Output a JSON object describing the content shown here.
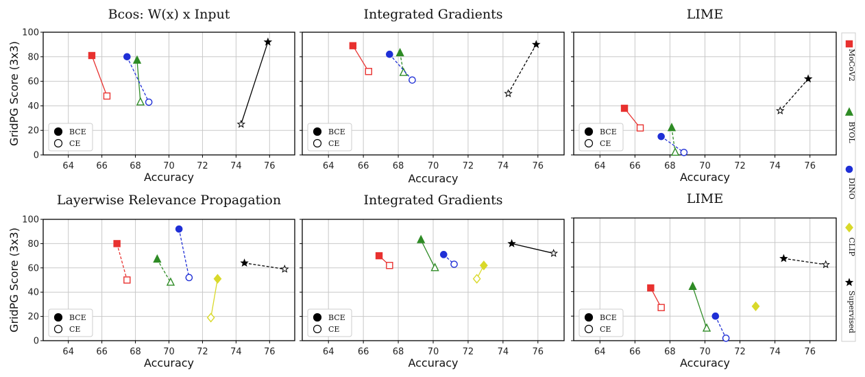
{
  "figure": {
    "ylabel": "GridPG Score (3x3)",
    "xlabel": "Accuracy",
    "legend_markers": [
      "BCE",
      "CE"
    ],
    "method_legend": [
      {
        "name": "MoCoV2",
        "color": "#e8312f",
        "marker": "square"
      },
      {
        "name": "BYOL",
        "color": "#2e8b25",
        "marker": "triangle"
      },
      {
        "name": "DINO",
        "color": "#1f2fd6",
        "marker": "circle"
      },
      {
        "name": "CLIP",
        "color": "#d9d92a",
        "marker": "diamond"
      },
      {
        "name": "Supervised",
        "color": "#000000",
        "marker": "star"
      }
    ]
  },
  "chart_data": [
    {
      "type": "scatter",
      "title": "Bcos: W(x) x Input",
      "xlabel": "Accuracy",
      "ylabel": "GridPG Score (3x3)",
      "xlim": [
        62.5,
        77.5
      ],
      "ylim": [
        0,
        100
      ],
      "xticks": [
        64,
        66,
        68,
        70,
        72,
        74,
        76
      ],
      "yticks": [
        0,
        20,
        40,
        60,
        80,
        100
      ],
      "legend": {
        "labels": [
          "BCE",
          "CE"
        ],
        "position": "lower-left"
      },
      "series": [
        {
          "name": "MoCoV2",
          "bce": [
            65.4,
            81
          ],
          "ce": [
            66.3,
            48
          ],
          "dash": false
        },
        {
          "name": "BYOL",
          "bce": [
            68.1,
            77
          ],
          "ce": [
            68.3,
            43
          ],
          "dash": false
        },
        {
          "name": "DINO",
          "bce": [
            67.5,
            80
          ],
          "ce": [
            68.8,
            43
          ],
          "dash": true
        },
        {
          "name": "Supervised",
          "bce": [
            75.9,
            92
          ],
          "ce": [
            74.3,
            25
          ],
          "dash": false
        }
      ]
    },
    {
      "type": "scatter",
      "title": "Integrated Gradients",
      "xlabel": "Accuracy",
      "ylabel": "",
      "xlim": [
        62.5,
        77.5
      ],
      "ylim": [
        0,
        100
      ],
      "xticks": [
        64,
        66,
        68,
        70,
        72,
        74,
        76
      ],
      "yticks": [
        0,
        20,
        40,
        60,
        80,
        100
      ],
      "legend": {
        "labels": [
          "BCE",
          "CE"
        ],
        "position": "lower-left"
      },
      "series": [
        {
          "name": "MoCoV2",
          "bce": [
            65.4,
            89
          ],
          "ce": [
            66.3,
            68
          ],
          "dash": false
        },
        {
          "name": "BYOL",
          "bce": [
            68.1,
            83
          ],
          "ce": [
            68.3,
            67
          ],
          "dash": true
        },
        {
          "name": "DINO",
          "bce": [
            67.5,
            82
          ],
          "ce": [
            68.8,
            61
          ],
          "dash": true
        },
        {
          "name": "Supervised",
          "bce": [
            75.9,
            90
          ],
          "ce": [
            74.3,
            50
          ],
          "dash": true
        }
      ]
    },
    {
      "type": "scatter",
      "title": "LIME",
      "xlabel": "Accuracy",
      "ylabel": "",
      "xlim": [
        62.5,
        77.5
      ],
      "ylim": [
        0,
        100
      ],
      "xticks": [
        64,
        66,
        68,
        70,
        72,
        74,
        76
      ],
      "yticks": [
        0,
        20,
        40,
        60,
        80,
        100
      ],
      "legend": {
        "labels": [
          "BCE",
          "CE"
        ],
        "position": "lower-left"
      },
      "series": [
        {
          "name": "MoCoV2",
          "bce": [
            65.4,
            38
          ],
          "ce": [
            66.3,
            22
          ],
          "dash": false
        },
        {
          "name": "BYOL",
          "bce": [
            68.1,
            22
          ],
          "ce": [
            68.3,
            2
          ],
          "dash": true
        },
        {
          "name": "DINO",
          "bce": [
            67.5,
            15
          ],
          "ce": [
            68.8,
            2
          ],
          "dash": true
        },
        {
          "name": "Supervised",
          "bce": [
            75.9,
            62
          ],
          "ce": [
            74.3,
            36
          ],
          "dash": true
        }
      ]
    },
    {
      "type": "scatter",
      "title": "Layerwise Relevance Propagation",
      "xlabel": "Accuracy",
      "ylabel": "GridPG Score (3x3)",
      "xlim": [
        62.5,
        77.5
      ],
      "ylim": [
        0,
        100
      ],
      "xticks": [
        64,
        66,
        68,
        70,
        72,
        74,
        76
      ],
      "yticks": [
        0,
        20,
        40,
        60,
        80,
        100
      ],
      "legend": {
        "labels": [
          "BCE",
          "CE"
        ],
        "position": "lower-left"
      },
      "series": [
        {
          "name": "MoCoV2",
          "bce": [
            66.9,
            80
          ],
          "ce": [
            67.5,
            50
          ],
          "dash": true
        },
        {
          "name": "BYOL",
          "bce": [
            69.3,
            67
          ],
          "ce": [
            70.1,
            48
          ],
          "dash": true
        },
        {
          "name": "DINO",
          "bce": [
            70.6,
            92
          ],
          "ce": [
            71.2,
            52
          ],
          "dash": true
        },
        {
          "name": "CLIP",
          "bce": [
            72.9,
            51
          ],
          "ce": [
            72.5,
            19
          ],
          "dash": false
        },
        {
          "name": "Supervised",
          "bce": [
            74.5,
            64
          ],
          "ce": [
            76.9,
            59
          ],
          "dash": true
        }
      ]
    },
    {
      "type": "scatter",
      "title": "Integrated Gradients",
      "xlabel": "Accuracy",
      "ylabel": "",
      "xlim": [
        62.5,
        77.5
      ],
      "ylim": [
        0,
        100
      ],
      "xticks": [
        64,
        66,
        68,
        70,
        72,
        74,
        76
      ],
      "yticks": [
        0,
        20,
        40,
        60,
        80,
        100
      ],
      "legend": {
        "labels": [
          "BCE",
          "CE"
        ],
        "position": "lower-left"
      },
      "series": [
        {
          "name": "MoCoV2",
          "bce": [
            66.9,
            70
          ],
          "ce": [
            67.5,
            62
          ],
          "dash": false
        },
        {
          "name": "BYOL",
          "bce": [
            69.3,
            83
          ],
          "ce": [
            70.1,
            60
          ],
          "dash": false
        },
        {
          "name": "DINO",
          "bce": [
            70.6,
            71
          ],
          "ce": [
            71.2,
            63
          ],
          "dash": true
        },
        {
          "name": "CLIP",
          "bce": [
            72.9,
            62
          ],
          "ce": [
            72.5,
            51
          ],
          "dash": false
        },
        {
          "name": "Supervised",
          "bce": [
            74.5,
            80
          ],
          "ce": [
            76.9,
            72
          ],
          "dash": false
        }
      ]
    },
    {
      "type": "scatter",
      "title": "LIME",
      "xlabel": "Accuracy",
      "ylabel": "",
      "xlim": [
        62.5,
        77.5
      ],
      "ylim": [
        0,
        100
      ],
      "xticks": [
        64,
        66,
        68,
        70,
        72,
        74,
        76
      ],
      "yticks": [
        0,
        20,
        40,
        60,
        80,
        100
      ],
      "legend": {
        "labels": [
          "BCE",
          "CE"
        ],
        "position": "lower-left"
      },
      "series": [
        {
          "name": "MoCoV2",
          "bce": [
            66.9,
            43
          ],
          "ce": [
            67.5,
            27
          ],
          "dash": false
        },
        {
          "name": "BYOL",
          "bce": [
            69.3,
            44
          ],
          "ce": [
            70.1,
            10
          ],
          "dash": false
        },
        {
          "name": "DINO",
          "bce": [
            70.6,
            20
          ],
          "ce": [
            71.2,
            2
          ],
          "dash": true
        },
        {
          "name": "CLIP",
          "bce": [
            72.9,
            28
          ],
          "ce": null,
          "dash": false
        },
        {
          "name": "Supervised",
          "bce": [
            74.5,
            67
          ],
          "ce": [
            76.9,
            62
          ],
          "dash": true
        }
      ]
    }
  ]
}
